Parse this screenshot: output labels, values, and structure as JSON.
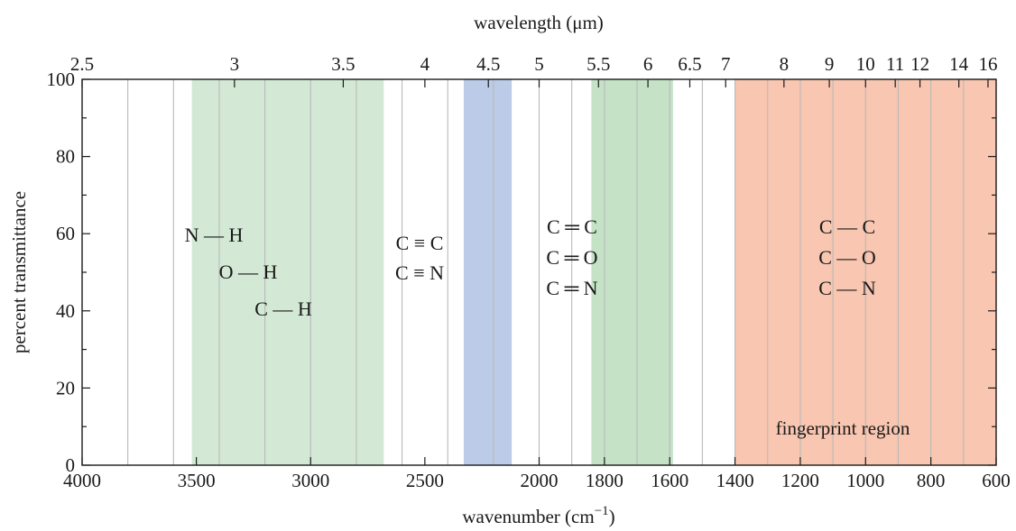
{
  "chart_data": {
    "type": "band-chart",
    "xlabel_bottom": "wavenumber (cm",
    "xlabel_bottom_sup": "−1",
    "xlabel_bottom_close": ")",
    "xlabel_top": "wavelength (μm)",
    "ylabel": "percent transmittance",
    "xlim": [
      4000,
      600
    ],
    "ylim": [
      0,
      100
    ],
    "x_ticks": [
      4000,
      3500,
      3000,
      2500,
      2000,
      1800,
      1600,
      1400,
      1200,
      1000,
      800,
      600
    ],
    "x_gridlines": [
      3800,
      3600,
      3400,
      3200,
      3000,
      2800,
      2600,
      2400,
      2200,
      2000,
      1900,
      1800,
      1700,
      1600,
      1500,
      1400,
      1300,
      1200,
      1100,
      1000,
      900,
      800,
      700
    ],
    "y_ticks": [
      0,
      20,
      40,
      60,
      80,
      100
    ],
    "y_minor_step": 10,
    "top_ticks": [
      {
        "label": "2.5",
        "um": 2.5
      },
      {
        "label": "3",
        "um": 3
      },
      {
        "label": "3.5",
        "um": 3.5
      },
      {
        "label": "4",
        "um": 4
      },
      {
        "label": "4.5",
        "um": 4.5
      },
      {
        "label": "5",
        "um": 5
      },
      {
        "label": "5.5",
        "um": 5.5
      },
      {
        "label": "6",
        "um": 6
      },
      {
        "label": "6.5",
        "um": 6.5
      },
      {
        "label": "7",
        "um": 7
      },
      {
        "label": "8",
        "um": 8
      },
      {
        "label": "9",
        "um": 9
      },
      {
        "label": "10",
        "um": 10
      },
      {
        "label": "11",
        "um": 11
      },
      {
        "label": "12",
        "um": 12
      },
      {
        "label": "14",
        "um": 14
      },
      {
        "label": "16",
        "um": 16
      }
    ],
    "bands": [
      {
        "from": 3520,
        "to": 2680,
        "color": "#d3e9d5",
        "labels": [
          "N — H",
          "O — H",
          "C — H"
        ]
      },
      {
        "from": 2330,
        "to": 2120,
        "color": "#bccbe7",
        "labels": [
          "C ≡ C",
          "C ≡ N"
        ]
      },
      {
        "from": 1840,
        "to": 1590,
        "color": "#c5e2c7",
        "labels": [
          "C ═ C",
          "C ═ O",
          "C ═ N"
        ]
      },
      {
        "from": 1400,
        "to": 600,
        "color": "#f8c6b1",
        "labels": [
          "C — C",
          "C — O",
          "C — N"
        ]
      }
    ],
    "annotation": "fingerprint region",
    "grid": "vertical"
  }
}
